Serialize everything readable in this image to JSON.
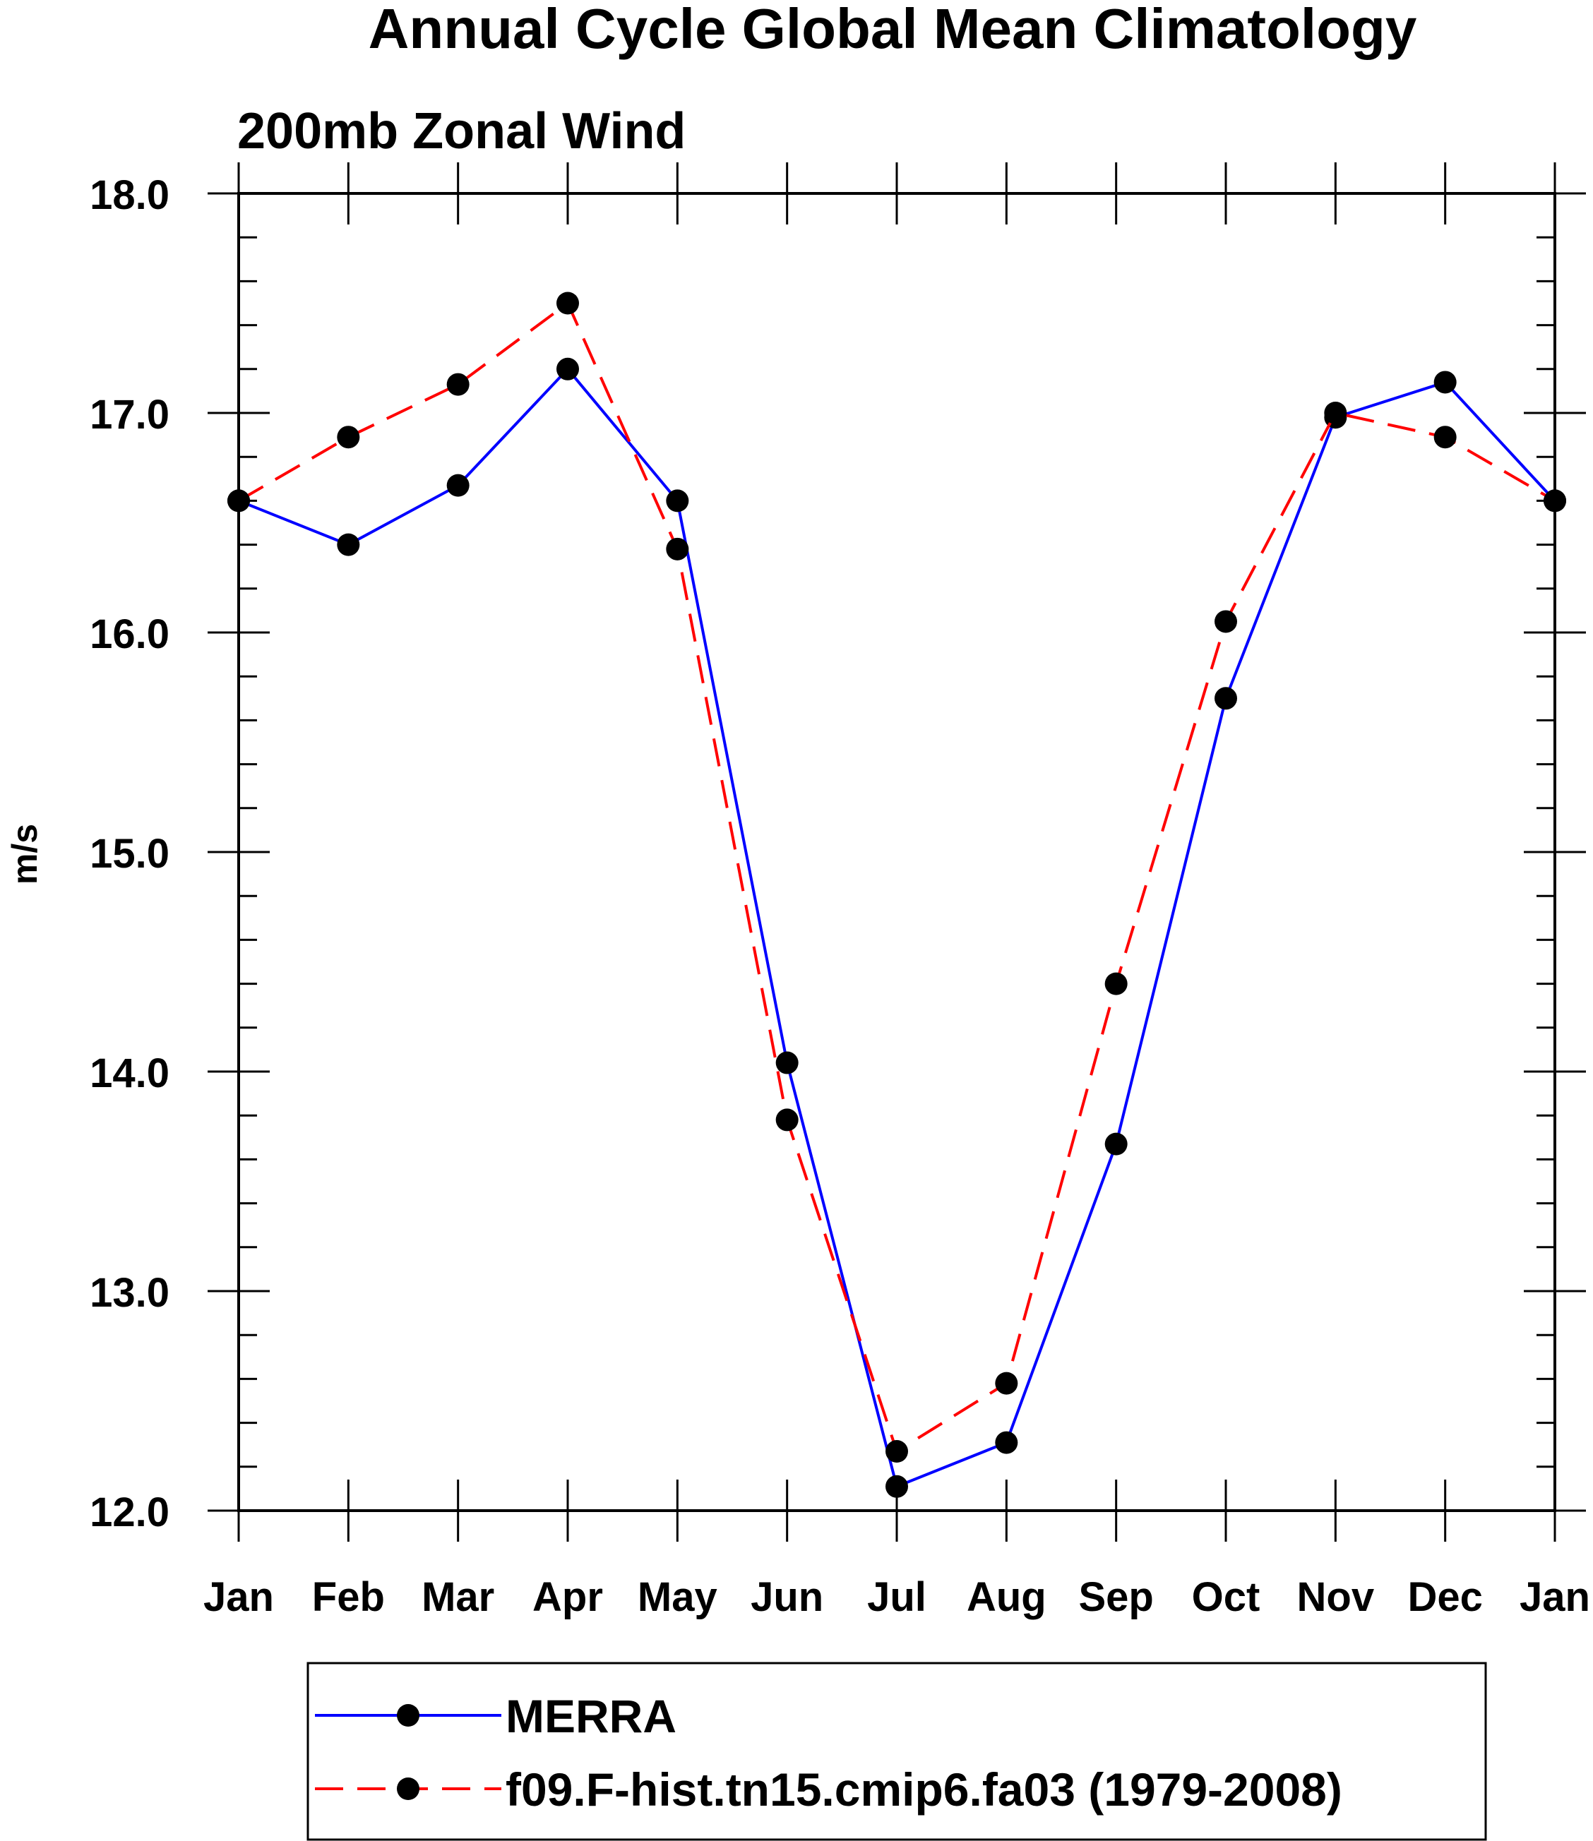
{
  "chart_data": {
    "type": "line",
    "title": "Annual Cycle Global Mean Climatology",
    "subtitle": "200mb Zonal Wind",
    "xlabel": "",
    "ylabel": "m/s",
    "categories": [
      "Jan",
      "Feb",
      "Mar",
      "Apr",
      "May",
      "Jun",
      "Jul",
      "Aug",
      "Sep",
      "Oct",
      "Nov",
      "Dec",
      "Jan"
    ],
    "ylim": [
      12.0,
      18.0
    ],
    "yticks": [
      "12.0",
      "13.0",
      "14.0",
      "15.0",
      "16.0",
      "17.0",
      "18.0"
    ],
    "grid": false,
    "legend_position": "bottom",
    "series": [
      {
        "name": "MERRA",
        "color": "#0000ff",
        "style": "solid",
        "marker": "filled-circle",
        "values": [
          16.6,
          16.4,
          16.67,
          17.2,
          16.6,
          14.04,
          12.11,
          12.31,
          13.67,
          15.7,
          16.98,
          17.14,
          16.6
        ]
      },
      {
        "name": "f09.F-hist.tn15.cmip6.fa03 (1979-2008)",
        "color": "#ff0000",
        "style": "dashed",
        "marker": "filled-circle",
        "values": [
          16.6,
          16.89,
          17.13,
          17.5,
          16.38,
          13.78,
          12.27,
          12.58,
          14.4,
          16.05,
          17.0,
          16.89,
          16.6
        ]
      }
    ]
  }
}
